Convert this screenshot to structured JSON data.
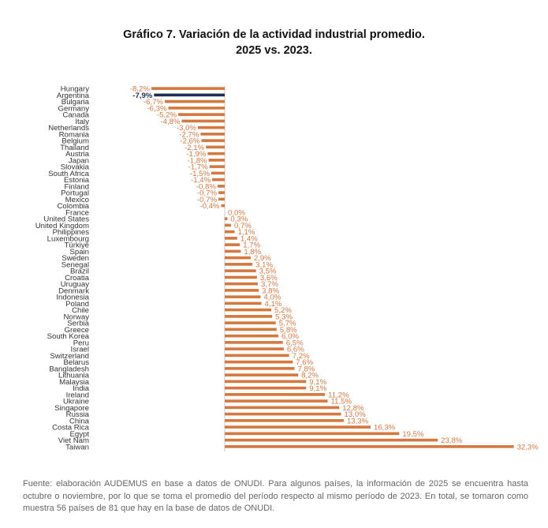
{
  "title": {
    "line1": "Gráfico 7. Variación de la actividad industrial promedio.",
    "line2": "2025 vs. 2023."
  },
  "source_note": "Fuente: elaboración AUDEMUS en base a datos de ONUDI. Para algunos países, la información de 2025 se encuentra hasta octubre o noviembre, por lo que se toma el promedio del período respecto al mismo período de 2023. En total, se tomaron como muestra 56 países de 81 que hay en la base de datos de ONUDI.",
  "colors": {
    "bar": "#d4783f",
    "highlight": "#1f2d4e",
    "label": "#d4783f",
    "highlight_label": "#1f2d4e"
  },
  "chart_data": {
    "type": "bar",
    "orientation": "horizontal",
    "title": "Gráfico 7. Variación de la actividad industrial promedio. 2025 vs. 2023.",
    "xlabel": "",
    "ylabel": "",
    "unit": "%",
    "highlight": "Argentina",
    "categories": [
      "Hungary",
      "Argentina",
      "Bulgaria",
      "Germany",
      "Canada",
      "Italy",
      "Netherlands",
      "Romania",
      "Belgium",
      "Thailand",
      "Austria",
      "Japan",
      "Slovakia",
      "South Africa",
      "Estonia",
      "Finland",
      "Portugal",
      "Mexico",
      "Colombia",
      "France",
      "United States",
      "United Kingdom",
      "Philippines",
      "Luxembourg",
      "Türkiye",
      "Spain",
      "Sweden",
      "Senegal",
      "Brazil",
      "Croatia",
      "Uruguay",
      "Denmark",
      "Indonesia",
      "Poland",
      "Chile",
      "Norway",
      "Serbia",
      "Greece",
      "South Korea",
      "Peru",
      "Israel",
      "Switzerland",
      "Belarus",
      "Bangladesh",
      "Lithuania",
      "Malaysia",
      "India",
      "Ireland",
      "Ukraine",
      "Singapore",
      "Russia",
      "China",
      "Costa Rica",
      "Egypt",
      "Viet Nam",
      "Taiwan"
    ],
    "values": [
      -8.2,
      -7.9,
      -6.7,
      -6.3,
      -5.2,
      -4.8,
      -3.0,
      -2.7,
      -2.6,
      -2.1,
      -1.9,
      -1.8,
      -1.7,
      -1.5,
      -1.4,
      -0.8,
      -0.7,
      -0.7,
      -0.4,
      0.0,
      0.3,
      0.7,
      1.1,
      1.4,
      1.7,
      1.8,
      2.9,
      3.1,
      3.5,
      3.6,
      3.7,
      3.8,
      4.0,
      4.1,
      5.2,
      5.3,
      5.7,
      5.8,
      6.0,
      6.5,
      6.6,
      7.2,
      7.6,
      7.8,
      8.2,
      9.1,
      9.1,
      11.2,
      11.5,
      12.8,
      13.0,
      13.3,
      16.3,
      19.5,
      23.8,
      32.3
    ],
    "labels": [
      "-8,2%",
      "-7,9%",
      "-6,7%",
      "-6,3%",
      "-5,2%",
      "-4,8%",
      "-3,0%",
      "-2,7%",
      "-2,6%",
      "-2,1%",
      "-1,9%",
      "-1,8%",
      "-1,7%",
      "-1,5%",
      "-1,4%",
      "-0,8%",
      "-0,7%",
      "-0,7%",
      "-0,4%",
      "0,0%",
      "0,3%",
      "0,7%",
      "1,1%",
      "1,4%",
      "1,7%",
      "1,8%",
      "2,9%",
      "3,1%",
      "3,5%",
      "3,6%",
      "3,7%",
      "3,8%",
      "4,0%",
      "4,1%",
      "5,2%",
      "5,3%",
      "5,7%",
      "5,8%",
      "6,0%",
      "6,5%",
      "6,6%",
      "7,2%",
      "7,6%",
      "7,8%",
      "8,2%",
      "9,1%",
      "9,1%",
      "11,2%",
      "11,5%",
      "12,8%",
      "13,0%",
      "13,3%",
      "16,3%",
      "19,5%",
      "23,8%",
      "32,3%"
    ],
    "xlim": [
      -8.2,
      32.3
    ],
    "grid": false,
    "legend": "none"
  }
}
